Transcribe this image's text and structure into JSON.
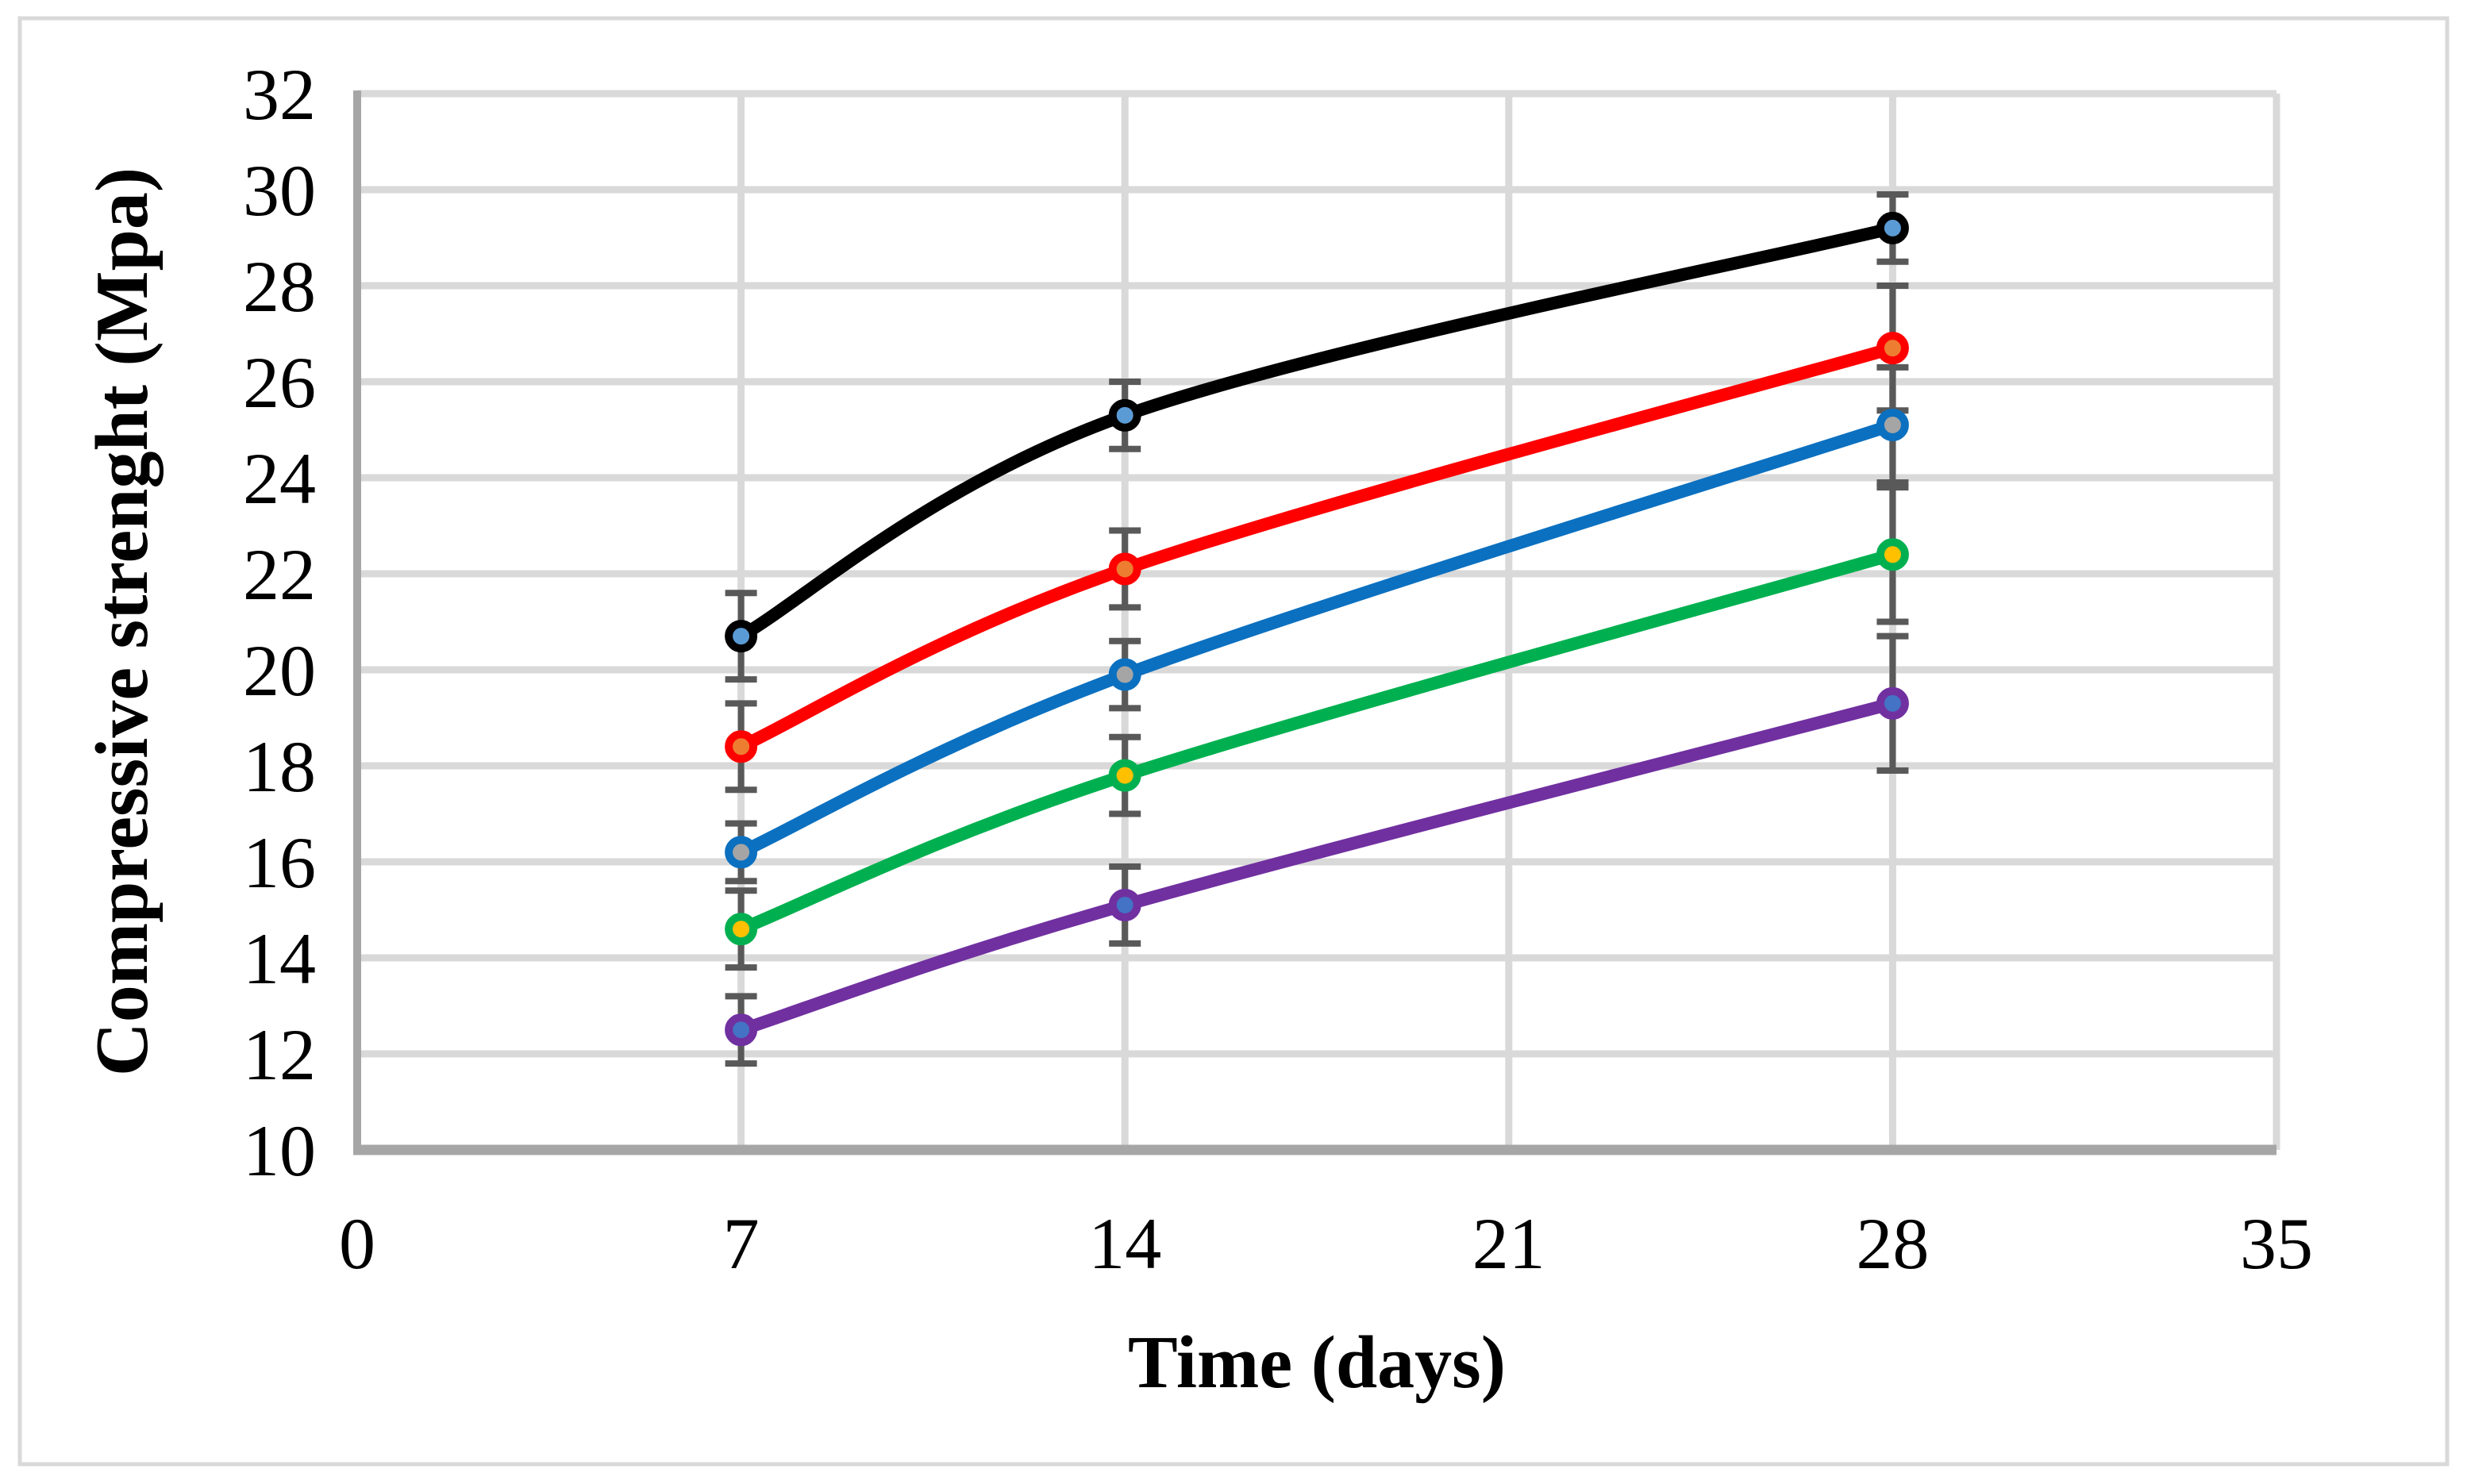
{
  "figure": {
    "background_color": "#FFFFFF",
    "outer_border_color": "#D9D9D9"
  },
  "chart_data": {
    "type": "line",
    "title": "",
    "xlabel": "Time (days)",
    "ylabel": "Compressive strenght (Mpa)",
    "x": [
      7,
      14,
      28
    ],
    "x_ticks": [
      0,
      7,
      14,
      21,
      28,
      35
    ],
    "y_ticks": [
      10,
      12,
      14,
      16,
      18,
      20,
      22,
      24,
      26,
      28,
      30,
      32
    ],
    "xlim": [
      0,
      35
    ],
    "ylim": [
      10,
      32
    ],
    "grid": true,
    "legend_position": "none",
    "smooth_lines": true,
    "series": [
      {
        "name": "series-1-black",
        "line_color": "#000000",
        "marker_fill": "#5B9BD5",
        "values": [
          20.7,
          25.3,
          29.2
        ],
        "error": [
          0.9,
          0.7,
          0.7
        ]
      },
      {
        "name": "series-2-red",
        "line_color": "#FF0000",
        "marker_fill": "#ED7D31",
        "values": [
          18.4,
          22.1,
          26.7
        ],
        "error": [
          0.9,
          0.8,
          1.3
        ]
      },
      {
        "name": "series-3-blue",
        "line_color": "#0B70C0",
        "marker_fill": "#A5A5A5",
        "values": [
          16.2,
          19.9,
          25.1
        ],
        "error": [
          0.6,
          0.7,
          1.2
        ]
      },
      {
        "name": "series-4-green",
        "line_color": "#00B050",
        "marker_fill": "#FFC000",
        "values": [
          14.6,
          17.8,
          22.4
        ],
        "error": [
          0.8,
          0.8,
          1.4
        ]
      },
      {
        "name": "series-5-purple",
        "line_color": "#7030A0",
        "marker_fill": "#4472C4",
        "values": [
          12.5,
          15.1,
          19.3
        ],
        "error": [
          0.7,
          0.8,
          1.4
        ]
      }
    ],
    "gridline_color": "#D9D9D9",
    "axis_line_color": "#A6A6A6",
    "error_bar_color": "#595959",
    "text_color": "#000000"
  }
}
